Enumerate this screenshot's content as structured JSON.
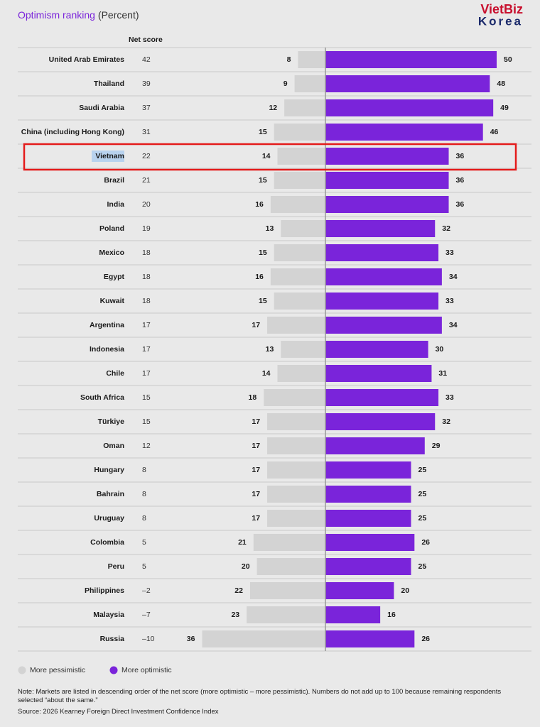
{
  "chart_data": {
    "type": "diverging_bar",
    "title": "Optimism ranking",
    "subtitle": "(Percent)",
    "net_score": {
      "label": "Net score",
      "values": [
        42,
        39,
        37,
        31,
        22,
        21,
        20,
        19,
        18,
        18,
        18,
        17,
        17,
        17,
        15,
        15,
        12,
        8,
        8,
        8,
        5,
        5,
        -2,
        -7,
        -10
      ],
      "value_labels": [
        "42",
        "39",
        "37",
        "31",
        "22",
        "21",
        "20",
        "19",
        "18",
        "18",
        "18",
        "17",
        "17",
        "17",
        "15",
        "15",
        "12",
        "8",
        "8",
        "8",
        "5",
        "5",
        "–2",
        "–7",
        "–10"
      ]
    },
    "categories": [
      "United Arab Emirates",
      "Thailand",
      "Saudi Arabia",
      "China (including Hong Kong)",
      "Vietnam",
      "Brazil",
      "India",
      "Poland",
      "Mexico",
      "Egypt",
      "Kuwait",
      "Argentina",
      "Indonesia",
      "Chile",
      "South Africa",
      "Türkiye",
      "Oman",
      "Hungary",
      "Bahrain",
      "Uruguay",
      "Colombia",
      "Peru",
      "Philippines",
      "Malaysia",
      "Russia"
    ],
    "series": [
      {
        "name": "More pessimistic",
        "color": "#d3d3d3",
        "values": [
          8,
          9,
          12,
          15,
          14,
          15,
          16,
          13,
          15,
          16,
          15,
          17,
          13,
          14,
          18,
          17,
          17,
          17,
          17,
          17,
          21,
          20,
          22,
          23,
          36
        ]
      },
      {
        "name": "More optimistic",
        "color": "#7a24da",
        "values": [
          50,
          48,
          49,
          46,
          36,
          36,
          36,
          32,
          33,
          34,
          33,
          34,
          30,
          31,
          33,
          32,
          29,
          25,
          25,
          25,
          26,
          25,
          20,
          16,
          26
        ]
      }
    ],
    "note": "Note: Markets are listed in descending order of the net score (more optimistic – more pessimistic). Numbers do not add up to 100 because remaining respondents selected “about the same.”",
    "source": "Source: 2026 Kearney Foreign Direct Investment Confidence Index",
    "watermark": [
      "VietBiz",
      "Korea"
    ]
  }
}
